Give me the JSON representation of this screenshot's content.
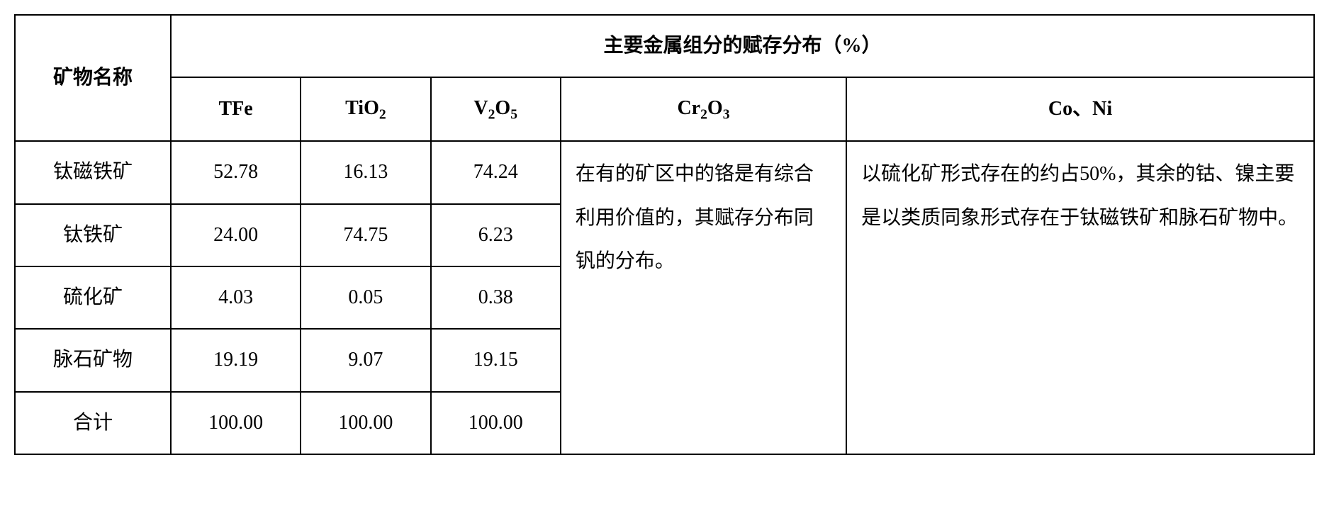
{
  "table": {
    "header": {
      "mineral_name": "矿物名称",
      "distribution_title": "主要金属组分的赋存分布（%）",
      "columns": {
        "tfe": "TFe",
        "tio2_base": "TiO",
        "tio2_sub": "2",
        "v2o5_base1": "V",
        "v2o5_sub1": "2",
        "v2o5_base2": "O",
        "v2o5_sub2": "5",
        "cr2o3_base1": "Cr",
        "cr2o3_sub1": "2",
        "cr2o3_base2": "O",
        "cr2o3_sub2": "3",
        "coni": "Co、Ni"
      }
    },
    "rows": [
      {
        "name": "钛磁铁矿",
        "tfe": "52.78",
        "tio2": "16.13",
        "v2o5": "74.24"
      },
      {
        "name": "钛铁矿",
        "tfe": "24.00",
        "tio2": "74.75",
        "v2o5": "6.23"
      },
      {
        "name": "硫化矿",
        "tfe": "4.03",
        "tio2": "0.05",
        "v2o5": "0.38"
      },
      {
        "name": "脉石矿物",
        "tfe": "19.19",
        "tio2": "9.07",
        "v2o5": "19.15"
      },
      {
        "name": "合计",
        "tfe": "100.00",
        "tio2": "100.00",
        "v2o5": "100.00"
      }
    ],
    "merged": {
      "cr2o3_text": "在有的矿区中的铬是有综合利用价值的，其赋存分布同钒的分布。",
      "coni_text": "以硫化矿形式存在的约占50%，其余的钴、镍主要是以类质同象形式存在于钛磁铁矿和脉石矿物中。"
    },
    "styling": {
      "border_color": "#000000",
      "background_color": "#ffffff",
      "text_color": "#000000",
      "border_width": 2,
      "font_family": "SimSun",
      "cell_fontsize": 28,
      "column_widths_percent": [
        12,
        10,
        10,
        10,
        22,
        36
      ]
    }
  }
}
